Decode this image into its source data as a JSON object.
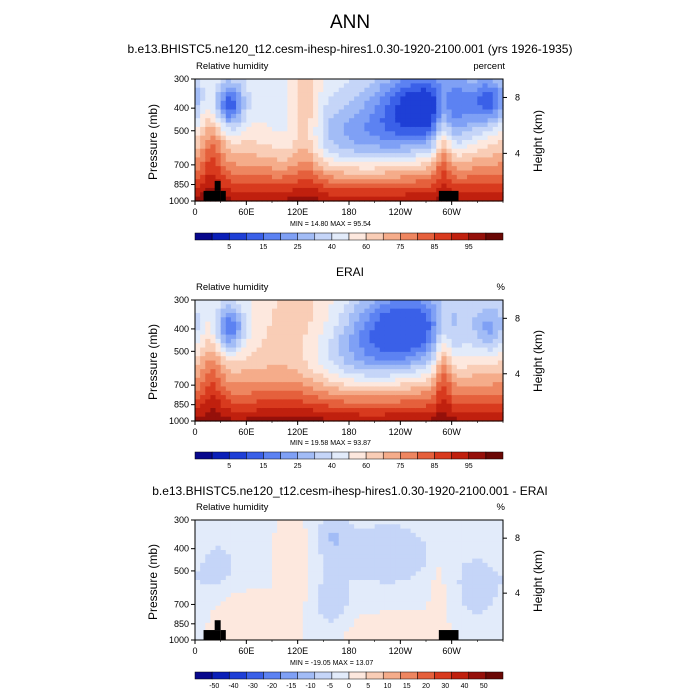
{
  "figure": {
    "title": "ANN"
  },
  "colors": {
    "colorbar_full": [
      "#08088c",
      "#0a1fb8",
      "#1e3fd6",
      "#3a60e8",
      "#5c82f2",
      "#7fa0f5",
      "#a2bcf6",
      "#c5d5f8",
      "#e2ebfa",
      "#fde8de",
      "#f9cdb6",
      "#f5ac8a",
      "#ee8660",
      "#e5603c",
      "#d83a1e",
      "#c0200e",
      "#95100a",
      "#6a0805"
    ],
    "colorbar_diff": [
      "#08088c",
      "#0a1fb8",
      "#1e3fd6",
      "#3a60e8",
      "#5c82f2",
      "#7fa0f5",
      "#a2bcf6",
      "#c5d5f8",
      "#e2ebfa",
      "#fde8de",
      "#f9cdb6",
      "#f5ac8a",
      "#ee8660",
      "#e5603c",
      "#d83a1e",
      "#c0200e",
      "#95100a",
      "#6a0805"
    ],
    "land": "#000000"
  },
  "chart_data": [
    {
      "type": "heatmap",
      "title": "b.e13.BHISTC5.ne120_t12.cesm-ihesp-hires1.0.30-1920-2100.001 (yrs 1926-1935)",
      "left_label": "Relative humidity",
      "right_label": "percent",
      "ylabel": "Pressure (mb)",
      "ylabel_right": "Height (km)",
      "xticks": [
        "0",
        "60E",
        "120E",
        "180",
        "120W",
        "60W"
      ],
      "xtick_values": [
        0,
        60,
        120,
        180,
        240,
        300
      ],
      "xlim": [
        0,
        360
      ],
      "yticks": [
        300,
        400,
        500,
        700,
        850,
        1000
      ],
      "ylim": [
        1000,
        300
      ],
      "yscale": "log",
      "height_ticks": [
        "8",
        "4"
      ],
      "height_tick_pressures": [
        360,
        625
      ],
      "colorbar_ticks": [
        "5",
        "15",
        "25",
        "40",
        "60",
        "75",
        "85",
        "95"
      ],
      "min_max_text": "MIN = 14.80  MAX = 95.54",
      "minmax": [
        14.8,
        95.54
      ],
      "kind": "model",
      "features": [
        {
          "lon": 270,
          "p": 400,
          "amp": -38,
          "sx": 42,
          "sy": 0.28
        },
        {
          "lon": 40,
          "p": 390,
          "amp": -30,
          "sx": 12,
          "sy": 0.16
        },
        {
          "lon": 345,
          "p": 370,
          "amp": -22,
          "sx": 14,
          "sy": 0.16
        },
        {
          "lon": 190,
          "p": 560,
          "amp": -22,
          "sx": 55,
          "sy": 0.25
        },
        {
          "lon": 130,
          "p": 460,
          "amp": 14,
          "sx": 12,
          "sy": 0.5
        },
        {
          "lon": 290,
          "p": 520,
          "amp": 20,
          "sx": 7,
          "sy": 0.35
        },
        {
          "lon": 20,
          "p": 600,
          "amp": 14,
          "sx": 10,
          "sy": 0.4
        }
      ],
      "land_blocks": [
        {
          "lon0": 10,
          "lon1": 30,
          "p0": 1000,
          "p1": 905
        },
        {
          "lon0": 23,
          "lon1": 30,
          "p0": 905,
          "p1": 820
        },
        {
          "lon0": 30,
          "lon1": 36,
          "p0": 1000,
          "p1": 905
        },
        {
          "lon0": 285,
          "lon1": 308,
          "p0": 1000,
          "p1": 905
        }
      ]
    },
    {
      "type": "heatmap",
      "title": "ERAI",
      "left_label": "Relative humidity",
      "right_label": "%",
      "ylabel": "Pressure (mb)",
      "ylabel_right": "Height (km)",
      "xticks": [
        "0",
        "60E",
        "120E",
        "180",
        "120W",
        "60W"
      ],
      "xtick_values": [
        0,
        60,
        120,
        180,
        240,
        300
      ],
      "xlim": [
        0,
        360
      ],
      "yticks": [
        300,
        400,
        500,
        700,
        850,
        1000
      ],
      "ylim": [
        1000,
        300
      ],
      "yscale": "log",
      "height_ticks": [
        "8",
        "4"
      ],
      "height_tick_pressures": [
        360,
        625
      ],
      "colorbar_ticks": [
        "5",
        "15",
        "25",
        "40",
        "60",
        "75",
        "85",
        "95"
      ],
      "min_max_text": "MIN = 19.58  MAX = 93.87",
      "minmax": [
        19.58,
        93.87
      ],
      "kind": "obs",
      "features": [
        {
          "lon": 245,
          "p": 400,
          "amp": -34,
          "sx": 40,
          "sy": 0.28
        },
        {
          "lon": 40,
          "p": 400,
          "amp": -28,
          "sx": 12,
          "sy": 0.16
        },
        {
          "lon": 345,
          "p": 400,
          "amp": -16,
          "sx": 14,
          "sy": 0.18
        },
        {
          "lon": 180,
          "p": 560,
          "amp": -18,
          "sx": 55,
          "sy": 0.25
        },
        {
          "lon": 120,
          "p": 420,
          "amp": 12,
          "sx": 35,
          "sy": 0.5
        },
        {
          "lon": 290,
          "p": 560,
          "amp": 18,
          "sx": 7,
          "sy": 0.35
        },
        {
          "lon": 20,
          "p": 600,
          "amp": 12,
          "sx": 10,
          "sy": 0.4
        }
      ],
      "land_blocks": []
    },
    {
      "type": "heatmap",
      "title": "b.e13.BHISTC5.ne120_t12.cesm-ihesp-hires1.0.30-1920-2100.001 - ERAI",
      "left_label": "Relative humidity",
      "right_label": "%",
      "ylabel": "Pressure (mb)",
      "ylabel_right": "Height (km)",
      "xticks": [
        "0",
        "60E",
        "120E",
        "180",
        "120W",
        "60W"
      ],
      "xtick_values": [
        0,
        60,
        120,
        180,
        240,
        300
      ],
      "xlim": [
        0,
        360
      ],
      "yticks": [
        300,
        400,
        500,
        700,
        850,
        1000
      ],
      "ylim": [
        1000,
        300
      ],
      "yscale": "log",
      "height_ticks": [
        "8",
        "4"
      ],
      "height_tick_pressures": [
        360,
        625
      ],
      "colorbar_ticks": [
        "-50",
        "-40",
        "-30",
        "-20",
        "-15",
        "-10",
        "-5",
        "0",
        "5",
        "10",
        "15",
        "20",
        "30",
        "40",
        "50"
      ],
      "min_max_text": "MIN = -19.05  MAX = 13.07",
      "minmax": [
        -19.05,
        13.07
      ],
      "kind": "diff",
      "features": [
        {
          "lon": 160,
          "p": 350,
          "amp": -10,
          "sx": 14,
          "sy": 0.18
        },
        {
          "lon": 160,
          "p": 680,
          "amp": -10,
          "sx": 16,
          "sy": 0.22
        },
        {
          "lon": 225,
          "p": 420,
          "amp": -12,
          "sx": 40,
          "sy": 0.25
        },
        {
          "lon": 30,
          "p": 500,
          "amp": -8,
          "sx": 20,
          "sy": 0.3
        },
        {
          "lon": 330,
          "p": 600,
          "amp": -8,
          "sx": 25,
          "sy": 0.35
        },
        {
          "lon": 40,
          "p": 760,
          "amp": 7,
          "sx": 18,
          "sy": 0.2
        },
        {
          "lon": 120,
          "p": 480,
          "amp": 6,
          "sx": 10,
          "sy": 0.25
        },
        {
          "lon": 235,
          "p": 920,
          "amp": 6,
          "sx": 40,
          "sy": 0.1
        },
        {
          "lon": 285,
          "p": 560,
          "amp": 5,
          "sx": 8,
          "sy": 0.3
        }
      ],
      "land_blocks": [
        {
          "lon0": 10,
          "lon1": 30,
          "p0": 1000,
          "p1": 905
        },
        {
          "lon0": 23,
          "lon1": 30,
          "p0": 905,
          "p1": 820
        },
        {
          "lon0": 30,
          "lon1": 36,
          "p0": 1000,
          "p1": 905
        },
        {
          "lon0": 285,
          "lon1": 308,
          "p0": 1000,
          "p1": 905
        }
      ]
    }
  ]
}
